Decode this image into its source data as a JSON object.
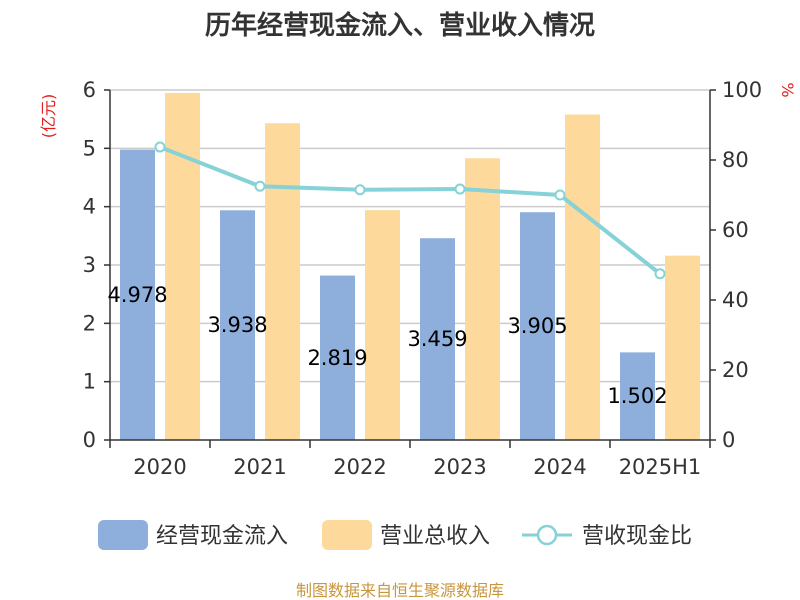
{
  "chart_data": {
    "type": "bar",
    "title": "历年经营现金流入、营业收入情况",
    "categories": [
      "2020",
      "2021",
      "2022",
      "2023",
      "2024",
      "2025H1"
    ],
    "y_left": {
      "unit_label": "(亿元)",
      "ylim": [
        0,
        6
      ],
      "ticks": [
        "0",
        "1",
        "2",
        "3",
        "4",
        "5",
        "6"
      ]
    },
    "y_right": {
      "unit_label": "%",
      "ylim": [
        0,
        100
      ],
      "ticks": [
        "0",
        "20",
        "40",
        "60",
        "80",
        "100"
      ]
    },
    "series": [
      {
        "name": "经营现金流入",
        "kind": "bar",
        "axis": "left",
        "color": "#8eaedc",
        "values": [
          4.978,
          3.938,
          2.819,
          3.459,
          3.905,
          1.502
        ],
        "labels": [
          "4.978",
          "3.938",
          "2.819",
          "3.459",
          "3.905",
          "1.502"
        ]
      },
      {
        "name": "营业总收入",
        "kind": "bar",
        "axis": "left",
        "color": "#fdd99c",
        "values": [
          5.95,
          5.43,
          3.94,
          4.83,
          5.58,
          3.16
        ]
      },
      {
        "name": "营收现金比",
        "kind": "line",
        "axis": "right",
        "color": "#86d2d6",
        "values": [
          83.7,
          72.5,
          71.5,
          71.7,
          70.0,
          47.5
        ]
      }
    ],
    "grid": true,
    "legend_position": "bottom",
    "source": "制图数据来自恒生聚源数据库"
  }
}
